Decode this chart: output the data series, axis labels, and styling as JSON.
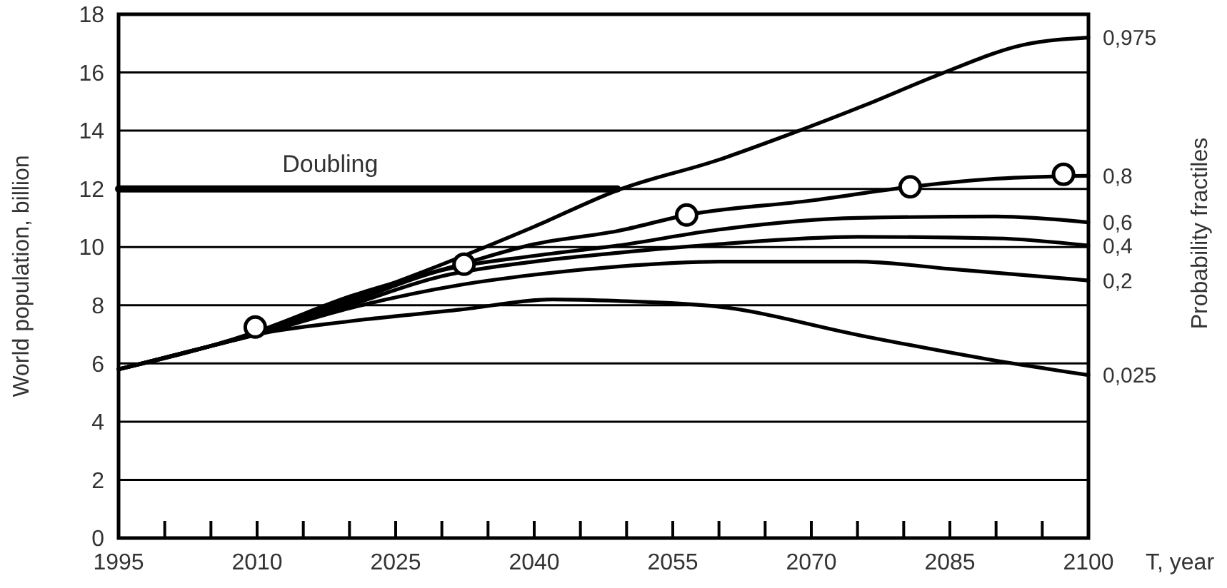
{
  "chart_data": {
    "type": "line",
    "xlabel": "T, year",
    "ylabel": "World population, billion",
    "y2label": "Probability fractiles",
    "xlim": [
      1995,
      2100
    ],
    "ylim": [
      0,
      18
    ],
    "xticks": [
      1995,
      {
        "value": 2000,
        "label": null
      },
      {
        "value": 2005,
        "label": null
      },
      2010,
      {
        "value": 2015,
        "label": null
      },
      {
        "value": 2020,
        "label": null
      },
      2025,
      {
        "value": 2030,
        "label": null
      },
      {
        "value": 2035,
        "label": null
      },
      2040,
      {
        "value": 2045,
        "label": null
      },
      {
        "value": 2050,
        "label": null
      },
      2055,
      {
        "value": 2060,
        "label": null
      },
      {
        "value": 2065,
        "label": null
      },
      2070,
      {
        "value": 2075,
        "label": null
      },
      {
        "value": 2080,
        "label": null
      },
      2085,
      {
        "value": 2090,
        "label": null
      },
      {
        "value": 2095,
        "label": null
      },
      2100
    ],
    "yticks": [
      0,
      2,
      4,
      6,
      8,
      10,
      12,
      14,
      16,
      18
    ],
    "grid": "y",
    "line_style": "solid",
    "series": [
      {
        "name": "Doubling",
        "color": "#000000",
        "x": [
          1995,
          2049
        ],
        "values": [
          12,
          12
        ]
      },
      {
        "name": "0,975",
        "color": "#000000",
        "x": [
          1995,
          2005,
          2010,
          2020,
          2030,
          2040,
          2049,
          2060,
          2067,
          2076,
          2084,
          2093,
          2100
        ],
        "values": [
          5.8,
          6.6,
          7.05,
          8.2,
          9.4,
          10.7,
          11.95,
          13.0,
          13.8,
          14.9,
          15.95,
          16.95,
          17.2
        ]
      },
      {
        "name": "0,8",
        "color": "#000000",
        "x": [
          1995,
          2005,
          2010,
          2020,
          2032,
          2040,
          2049,
          2056.5,
          2070,
          2080.7,
          2090,
          2100
        ],
        "values": [
          5.8,
          6.6,
          7.1,
          8.3,
          9.4,
          10.1,
          10.55,
          11.1,
          11.6,
          12.07,
          12.35,
          12.45
        ]
      },
      {
        "name": "0,6",
        "color": "#000000",
        "x": [
          1995,
          2005,
          2010,
          2020,
          2030,
          2040,
          2049,
          2060,
          2075,
          2090,
          2100
        ],
        "values": [
          5.8,
          6.6,
          7.05,
          8.1,
          9.2,
          9.7,
          10.05,
          10.6,
          11.0,
          11.05,
          10.85
        ]
      },
      {
        "name": "0,4",
        "color": "#000000",
        "x": [
          1995,
          2005,
          2010,
          2020,
          2030,
          2040,
          2049,
          2060,
          2075,
          2090,
          2100
        ],
        "values": [
          5.8,
          6.6,
          7.0,
          8.0,
          9.0,
          9.5,
          9.8,
          10.1,
          10.35,
          10.3,
          10.05
        ]
      },
      {
        "name": "0,2",
        "color": "#000000",
        "x": [
          1995,
          2005,
          2010,
          2020,
          2032,
          2040,
          2049,
          2060,
          2075,
          2085,
          2100
        ],
        "values": [
          5.8,
          6.6,
          7.0,
          7.9,
          8.7,
          9.05,
          9.33,
          9.5,
          9.5,
          9.25,
          8.85
        ]
      },
      {
        "name": "0,025",
        "color": "#000000",
        "x": [
          1995,
          2005,
          2010,
          2020,
          2032,
          2042,
          2049,
          2060,
          2075.5,
          2089,
          2100
        ],
        "values": [
          5.8,
          6.6,
          7.0,
          7.45,
          7.85,
          8.2,
          8.15,
          7.95,
          6.95,
          6.15,
          5.6
        ]
      },
      {
        "type": "scatter",
        "marker": "circle",
        "color": "#000000",
        "x": [
          2009.8,
          2032.4,
          2056.5,
          2080.7,
          2097.3
        ],
        "values": [
          7.25,
          9.41,
          11.1,
          12.07,
          12.5
        ]
      }
    ]
  }
}
